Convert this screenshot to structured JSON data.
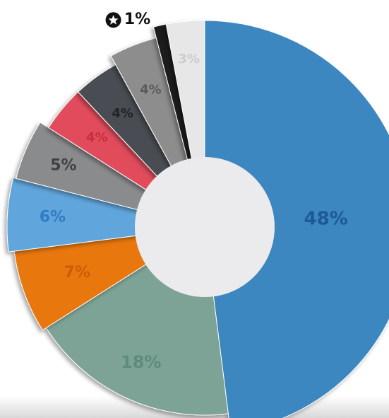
{
  "chart_data": {
    "type": "donut",
    "categories": [
      null,
      null,
      null,
      null,
      null,
      null,
      null,
      null,
      null,
      null
    ],
    "values": [
      48,
      18,
      7,
      6,
      5,
      4,
      4,
      4,
      1,
      3
    ],
    "value_labels": [
      "48%",
      "18%",
      "7%",
      "6%",
      "5%",
      "4%",
      "4%",
      "4%",
      "1%",
      "3%"
    ],
    "colors": [
      "#3d87c1",
      "#7ca396",
      "#e8770f",
      "#60a6dc",
      "#8a8b8d",
      "#e14b5b",
      "#4a4d53",
      "#8d8d8d",
      "#1f1f1f",
      "#e7e7e7"
    ]
  }
}
